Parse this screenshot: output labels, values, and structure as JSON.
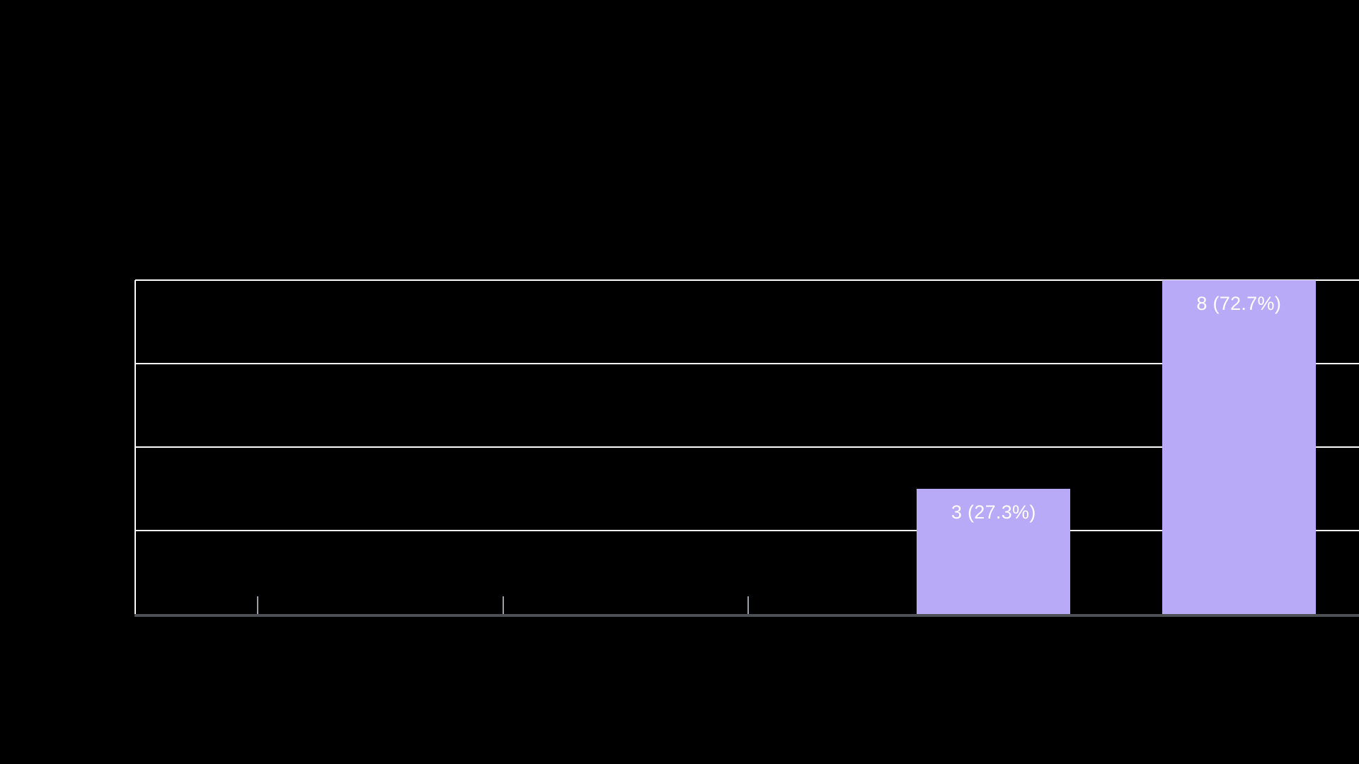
{
  "page": {
    "background_color": "#000000"
  },
  "chart_data": {
    "type": "bar",
    "categories": [
      "",
      "",
      "",
      "",
      ""
    ],
    "values": [
      0,
      0,
      0,
      3,
      8
    ],
    "data_labels": [
      "",
      "",
      "",
      "3 (27.3%)",
      "8 (72.7%)"
    ],
    "title": "",
    "xlabel": "",
    "ylabel": "",
    "ylim": [
      0,
      8
    ],
    "gridline_values": [
      2,
      4,
      6,
      8
    ],
    "grid_on": true,
    "legend_position": "none",
    "colors": {
      "bar_fill": "#b9aaf8",
      "data_label_text": "#ffffff",
      "gridline": "#fcfcfc",
      "y_axis_line": "#fcfcfc",
      "x_axis_line": "#4d5156",
      "tick_mark": "#9aa0a6",
      "background": "#000000"
    }
  }
}
